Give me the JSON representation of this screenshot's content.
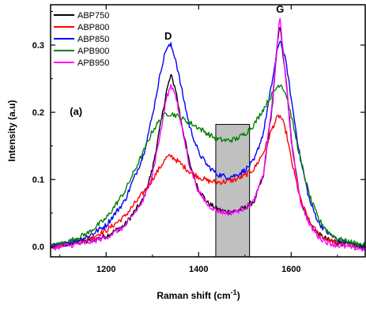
{
  "chart_data": {
    "type": "line",
    "xlabel": "Raman shift (cm",
    "xlabel_sup": "-1",
    "xlabel_close": ")",
    "ylabel": "Intensity (a.u)",
    "xlim": [
      1080,
      1760
    ],
    "ylim": [
      -0.015,
      0.36
    ],
    "xticks": [
      1200,
      1400,
      1600
    ],
    "yticks": [
      0.0,
      0.1,
      0.2,
      0.3
    ],
    "ytick_labels": [
      "0.0",
      "0.1",
      "0.2",
      "0.3"
    ],
    "legend_position": "top-left",
    "annotations": {
      "panel_label": "(a)",
      "d_label": "D",
      "g_label": "G"
    },
    "annotation_positions": {
      "panel_label": [
        1135,
        0.196
      ],
      "d_label": [
        1334,
        0.308
      ],
      "g_label": [
        1576,
        0.348
      ]
    },
    "shaded_region": {
      "x": [
        1437,
        1510
      ],
      "y": [
        -0.015,
        0.182
      ],
      "color": "#c0c0c0"
    },
    "x": [
      1080,
      1120,
      1160,
      1200,
      1240,
      1280,
      1300,
      1320,
      1330,
      1340,
      1350,
      1360,
      1380,
      1400,
      1420,
      1440,
      1460,
      1480,
      1500,
      1520,
      1540,
      1560,
      1570,
      1575,
      1580,
      1590,
      1600,
      1620,
      1640,
      1660,
      1680,
      1700,
      1720,
      1760
    ],
    "series": [
      {
        "name": "ABP750",
        "color": "#000000",
        "values": [
          0.0,
          0.004,
          0.008,
          0.016,
          0.032,
          0.07,
          0.115,
          0.19,
          0.23,
          0.255,
          0.235,
          0.195,
          0.125,
          0.085,
          0.065,
          0.056,
          0.052,
          0.053,
          0.058,
          0.068,
          0.105,
          0.215,
          0.3,
          0.335,
          0.3,
          0.24,
          0.16,
          0.07,
          0.035,
          0.018,
          0.01,
          0.006,
          0.004,
          0.0
        ]
      },
      {
        "name": "ABP800",
        "color": "#ff0000",
        "values": [
          0.0,
          0.005,
          0.012,
          0.024,
          0.045,
          0.08,
          0.1,
          0.122,
          0.132,
          0.135,
          0.13,
          0.124,
          0.112,
          0.104,
          0.098,
          0.096,
          0.097,
          0.1,
          0.106,
          0.116,
          0.14,
          0.178,
          0.192,
          0.195,
          0.19,
          0.168,
          0.13,
          0.07,
          0.036,
          0.018,
          0.01,
          0.006,
          0.004,
          0.0
        ]
      },
      {
        "name": "ABP850",
        "color": "#0000ff",
        "values": [
          0.0,
          0.006,
          0.015,
          0.032,
          0.068,
          0.135,
          0.195,
          0.268,
          0.295,
          0.3,
          0.28,
          0.245,
          0.18,
          0.14,
          0.12,
          0.108,
          0.104,
          0.106,
          0.114,
          0.128,
          0.17,
          0.25,
          0.292,
          0.308,
          0.3,
          0.27,
          0.22,
          0.13,
          0.068,
          0.035,
          0.02,
          0.01,
          0.006,
          0.0
        ]
      },
      {
        "name": "APB900",
        "color": "#008000",
        "values": [
          0.0,
          0.008,
          0.02,
          0.042,
          0.082,
          0.14,
          0.172,
          0.192,
          0.198,
          0.198,
          0.196,
          0.192,
          0.185,
          0.177,
          0.168,
          0.16,
          0.158,
          0.16,
          0.168,
          0.182,
          0.205,
          0.228,
          0.238,
          0.242,
          0.24,
          0.225,
          0.195,
          0.13,
          0.075,
          0.04,
          0.022,
          0.012,
          0.008,
          0.002
        ]
      },
      {
        "name": "APB950",
        "color": "#ff00ff",
        "values": [
          -0.002,
          0.002,
          0.006,
          0.014,
          0.03,
          0.068,
          0.108,
          0.178,
          0.22,
          0.24,
          0.228,
          0.19,
          0.122,
          0.082,
          0.062,
          0.054,
          0.05,
          0.052,
          0.058,
          0.068,
          0.108,
          0.22,
          0.305,
          0.345,
          0.305,
          0.24,
          0.158,
          0.068,
          0.032,
          0.014,
          0.006,
          0.002,
          0.0,
          -0.004
        ]
      }
    ]
  }
}
